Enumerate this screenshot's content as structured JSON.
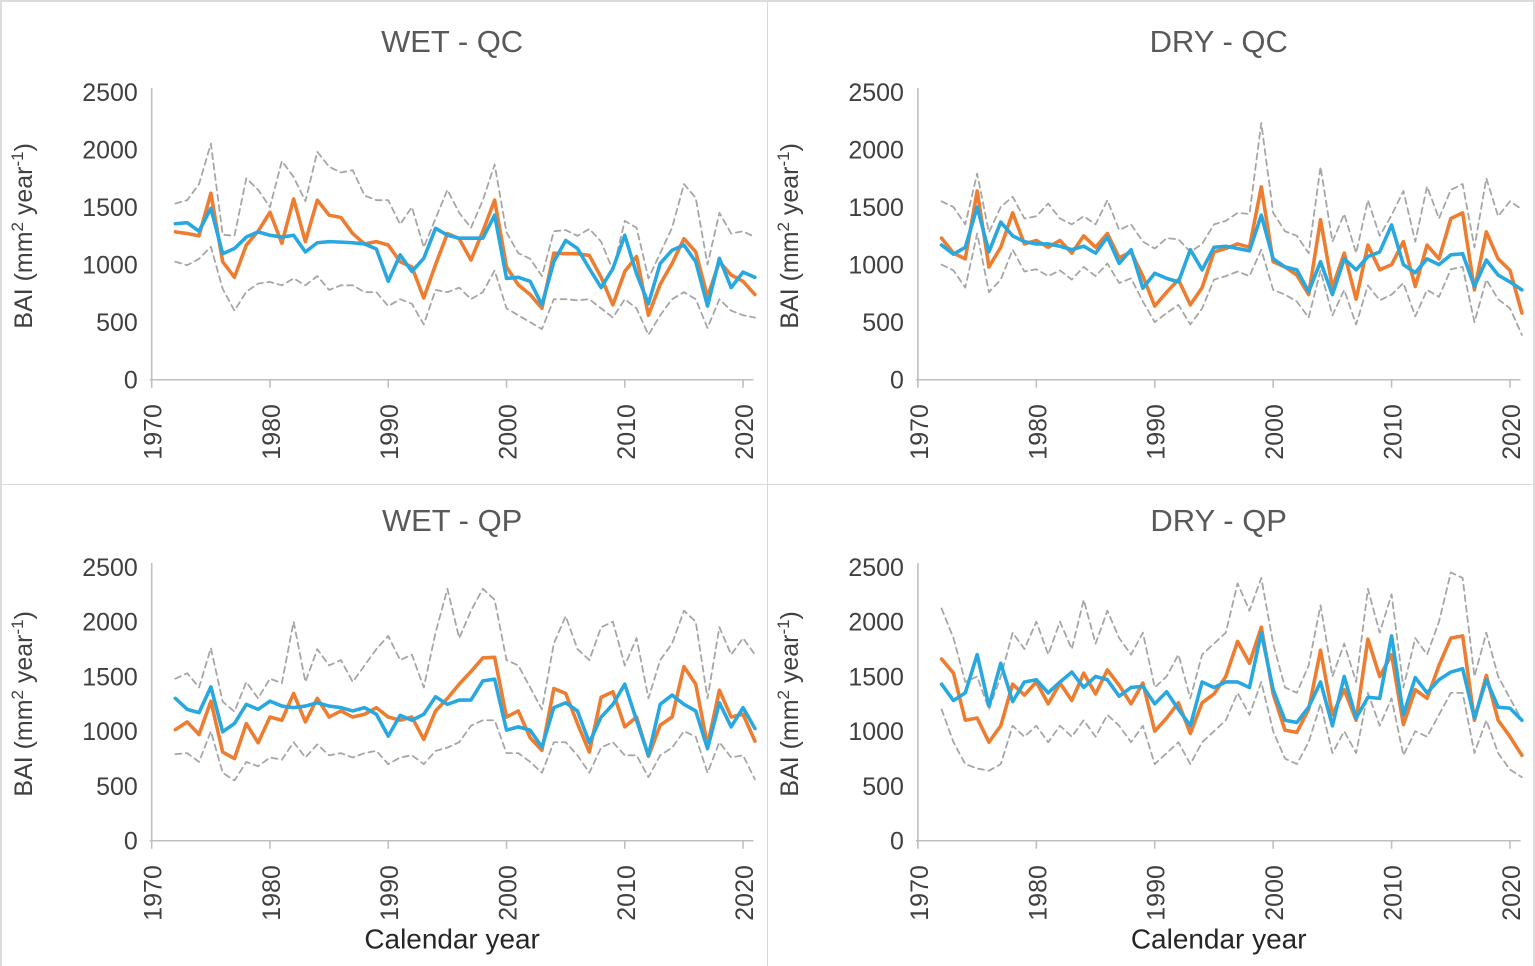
{
  "figure": {
    "background": "#ffffff",
    "border_color": "#d9d9d9"
  },
  "colors": {
    "orange_series": "#ED7D31",
    "blue_series": "#29A8E0",
    "dashed_series": "#A6A6A6",
    "axis_line": "#BFBFBF",
    "tick_text": "#404040",
    "title_text": "#595959",
    "xlabel_text": "#262626"
  },
  "axis": {
    "x_label": "Calendar year",
    "y_label_parts": {
      "pre": "BAI (mm",
      "sup1": "2",
      "mid": " year",
      "sup2": "-1",
      "post": ")"
    },
    "x_ticks": [
      "1970",
      "1980",
      "1990",
      "2000",
      "2010",
      "2020"
    ],
    "y_ticks": [
      "2500",
      "2000",
      "1500",
      "1000",
      "500",
      "0"
    ]
  },
  "chart_data": [
    {
      "type": "line",
      "title": "WET - QC",
      "ylabel": "BAI (mm2 year-1)",
      "xlabel": "Calendar year",
      "show_xlabel": false,
      "ylim": [
        0,
        2500
      ],
      "xlim": [
        1970,
        2022
      ],
      "year_start": 1972,
      "legend": "none",
      "grid": false,
      "series": [
        {
          "name": "upper-dashed",
          "color_key": "dashed_series",
          "dash": true,
          "values": [
            1530,
            1560,
            1700,
            2050,
            1260,
            1250,
            1750,
            1650,
            1500,
            1900,
            1760,
            1550,
            1980,
            1850,
            1800,
            1820,
            1600,
            1560,
            1560,
            1350,
            1500,
            1150,
            1400,
            1650,
            1450,
            1320,
            1560,
            1870,
            1280,
            1100,
            1050,
            900,
            1290,
            1300,
            1250,
            1310,
            1200,
            950,
            1380,
            1320,
            880,
            1100,
            1320,
            1700,
            1580,
            1000,
            1450,
            1270,
            1290,
            1240
          ]
        },
        {
          "name": "lower-dashed",
          "color_key": "dashed_series",
          "dash": true,
          "values": [
            1025,
            995,
            1050,
            1155,
            790,
            600,
            765,
            835,
            850,
            820,
            880,
            820,
            900,
            780,
            820,
            820,
            760,
            760,
            640,
            700,
            660,
            480,
            780,
            760,
            800,
            700,
            760,
            950,
            620,
            560,
            500,
            440,
            700,
            700,
            690,
            700,
            620,
            540,
            700,
            620,
            390,
            560,
            700,
            760,
            700,
            450,
            700,
            600,
            560,
            540
          ]
        },
        {
          "name": "orange-solid",
          "color_key": "orange_series",
          "dash": false,
          "values": [
            1285,
            1270,
            1250,
            1620,
            1025,
            890,
            1170,
            1290,
            1455,
            1185,
            1570,
            1200,
            1560,
            1430,
            1410,
            1270,
            1180,
            1200,
            1170,
            1025,
            980,
            710,
            1000,
            1270,
            1225,
            1040,
            1290,
            1560,
            980,
            825,
            740,
            620,
            1100,
            1095,
            1095,
            1080,
            890,
            650,
            940,
            1070,
            560,
            830,
            1010,
            1225,
            1110,
            720,
            1025,
            910,
            855,
            740
          ]
        },
        {
          "name": "blue-solid",
          "color_key": "blue_series",
          "dash": false,
          "values": [
            1355,
            1365,
            1290,
            1490,
            1095,
            1140,
            1240,
            1285,
            1255,
            1240,
            1255,
            1110,
            1190,
            1200,
            1195,
            1190,
            1180,
            1135,
            855,
            1085,
            940,
            1055,
            1315,
            1255,
            1230,
            1230,
            1230,
            1430,
            880,
            890,
            855,
            650,
            1025,
            1210,
            1140,
            965,
            800,
            965,
            1255,
            920,
            660,
            1010,
            1125,
            1170,
            1025,
            640,
            1055,
            800,
            935,
            890
          ]
        }
      ]
    },
    {
      "type": "line",
      "title": "DRY - QC",
      "ylabel": "BAI (mm2 year-1)",
      "xlabel": "Calendar year",
      "show_xlabel": false,
      "ylim": [
        0,
        2500
      ],
      "xlim": [
        1970,
        2022
      ],
      "year_start": 1972,
      "legend": "none",
      "grid": false,
      "series": [
        {
          "name": "upper-dashed",
          "color_key": "dashed_series",
          "dash": true,
          "values": [
            1550,
            1500,
            1350,
            1790,
            1280,
            1500,
            1590,
            1400,
            1420,
            1530,
            1400,
            1350,
            1420,
            1350,
            1560,
            1300,
            1350,
            1200,
            1140,
            1230,
            1220,
            1110,
            1180,
            1350,
            1380,
            1450,
            1440,
            2230,
            1450,
            1290,
            1250,
            1100,
            1850,
            1200,
            1440,
            1100,
            1560,
            1250,
            1430,
            1640,
            1200,
            1680,
            1400,
            1650,
            1700,
            1150,
            1750,
            1420,
            1550,
            1480
          ]
        },
        {
          "name": "lower-dashed",
          "color_key": "dashed_series",
          "dash": true,
          "values": [
            1000,
            950,
            800,
            1270,
            760,
            870,
            1130,
            940,
            960,
            900,
            950,
            870,
            980,
            900,
            1010,
            840,
            880,
            680,
            500,
            580,
            650,
            480,
            620,
            870,
            900,
            940,
            900,
            1130,
            780,
            740,
            680,
            540,
            950,
            560,
            780,
            480,
            820,
            690,
            740,
            840,
            550,
            780,
            720,
            960,
            980,
            500,
            870,
            700,
            620,
            390
          ]
        },
        {
          "name": "orange-solid",
          "color_key": "orange_series",
          "dash": false,
          "values": [
            1230,
            1100,
            1050,
            1640,
            980,
            1150,
            1450,
            1180,
            1210,
            1150,
            1210,
            1100,
            1250,
            1150,
            1270,
            1060,
            1110,
            900,
            640,
            760,
            870,
            650,
            800,
            1110,
            1140,
            1180,
            1150,
            1675,
            1025,
            980,
            910,
            740,
            1390,
            800,
            1100,
            700,
            1170,
            955,
            1000,
            1200,
            810,
            1170,
            1050,
            1400,
            1450,
            780,
            1285,
            1050,
            950,
            580
          ]
        },
        {
          "name": "blue-solid",
          "color_key": "blue_series",
          "dash": false,
          "values": [
            1170,
            1090,
            1150,
            1500,
            1110,
            1370,
            1250,
            1200,
            1180,
            1180,
            1160,
            1130,
            1160,
            1100,
            1240,
            1010,
            1130,
            795,
            925,
            880,
            850,
            1130,
            955,
            1150,
            1160,
            1140,
            1120,
            1430,
            1050,
            980,
            955,
            765,
            1025,
            740,
            1050,
            955,
            1070,
            1110,
            1345,
            1000,
            930,
            1050,
            1000,
            1085,
            1095,
            810,
            1040,
            910,
            850,
            780
          ]
        }
      ]
    },
    {
      "type": "line",
      "title": "WET - QP",
      "ylabel": "BAI (mm2 year-1)",
      "xlabel": "Calendar year",
      "show_xlabel": true,
      "ylim": [
        0,
        2500
      ],
      "xlim": [
        1970,
        2022
      ],
      "year_start": 1972,
      "legend": "none",
      "grid": false,
      "series": [
        {
          "name": "upper-dashed",
          "color_key": "dashed_series",
          "dash": true,
          "values": [
            1480,
            1530,
            1400,
            1760,
            1270,
            1180,
            1450,
            1300,
            1480,
            1440,
            2000,
            1450,
            1750,
            1600,
            1650,
            1450,
            1600,
            1750,
            1870,
            1650,
            1700,
            1400,
            1900,
            2300,
            1850,
            2100,
            2300,
            2200,
            1650,
            1600,
            1400,
            1200,
            1800,
            2050,
            1750,
            1650,
            1950,
            2000,
            1600,
            1850,
            1300,
            1650,
            1800,
            2100,
            2000,
            1300,
            1950,
            1700,
            1850,
            1700
          ]
        },
        {
          "name": "lower-dashed",
          "color_key": "dashed_series",
          "dash": true,
          "values": [
            790,
            800,
            720,
            1000,
            620,
            550,
            720,
            680,
            760,
            740,
            900,
            760,
            880,
            780,
            800,
            760,
            800,
            820,
            700,
            760,
            780,
            700,
            820,
            850,
            900,
            1050,
            1100,
            1100,
            800,
            800,
            720,
            620,
            900,
            900,
            780,
            620,
            850,
            900,
            780,
            780,
            580,
            780,
            850,
            1000,
            950,
            620,
            900,
            760,
            780,
            560
          ]
        },
        {
          "name": "orange-solid",
          "color_key": "orange_series",
          "dash": false,
          "values": [
            1015,
            1085,
            970,
            1275,
            810,
            750,
            1070,
            895,
            1130,
            1100,
            1345,
            1085,
            1300,
            1130,
            1185,
            1130,
            1155,
            1215,
            1130,
            1100,
            1130,
            925,
            1185,
            1300,
            1430,
            1545,
            1670,
            1675,
            1130,
            1185,
            940,
            825,
            1390,
            1345,
            1070,
            810,
            1310,
            1360,
            1040,
            1130,
            770,
            1055,
            1130,
            1590,
            1430,
            870,
            1375,
            1130,
            1155,
            910
          ]
        },
        {
          "name": "blue-solid",
          "color_key": "blue_series",
          "dash": false,
          "values": [
            1300,
            1200,
            1170,
            1405,
            995,
            1070,
            1245,
            1200,
            1275,
            1230,
            1215,
            1230,
            1260,
            1230,
            1215,
            1185,
            1215,
            1155,
            955,
            1145,
            1100,
            1155,
            1315,
            1245,
            1285,
            1285,
            1460,
            1475,
            1010,
            1040,
            1010,
            855,
            1215,
            1260,
            1185,
            895,
            1130,
            1245,
            1430,
            1100,
            780,
            1245,
            1330,
            1245,
            1185,
            840,
            1260,
            1040,
            1215,
            1025
          ]
        }
      ]
    },
    {
      "type": "line",
      "title": "DRY - QP",
      "ylabel": "BAI (mm2 year-1)",
      "xlabel": "Calendar year",
      "show_xlabel": true,
      "ylim": [
        0,
        2500
      ],
      "xlim": [
        1970,
        2022
      ],
      "year_start": 1972,
      "legend": "none",
      "grid": false,
      "series": [
        {
          "name": "upper-dashed",
          "color_key": "dashed_series",
          "dash": true,
          "values": [
            2120,
            1850,
            1450,
            1500,
            1200,
            1500,
            1900,
            1750,
            2000,
            1700,
            2000,
            1750,
            2200,
            1800,
            2100,
            1850,
            1700,
            1900,
            1400,
            1500,
            1700,
            1300,
            1700,
            1800,
            1900,
            2350,
            2100,
            2400,
            1800,
            1400,
            1350,
            1600,
            2150,
            1500,
            1800,
            1450,
            2300,
            1900,
            2250,
            1400,
            1850,
            1700,
            2000,
            2450,
            2400,
            1500,
            1900,
            1500,
            1300,
            1100
          ]
        },
        {
          "name": "lower-dashed",
          "color_key": "dashed_series",
          "dash": true,
          "values": [
            1200,
            900,
            700,
            660,
            640,
            700,
            1050,
            950,
            1050,
            900,
            1050,
            950,
            1100,
            950,
            1150,
            1050,
            900,
            1050,
            700,
            800,
            900,
            700,
            900,
            1000,
            1100,
            1350,
            1150,
            1450,
            1000,
            750,
            700,
            900,
            1250,
            800,
            1000,
            800,
            1350,
            1050,
            1300,
            780,
            1000,
            950,
            1150,
            1350,
            1350,
            800,
            1100,
            800,
            650,
            580
          ]
        },
        {
          "name": "orange-solid",
          "color_key": "orange_series",
          "dash": false,
          "values": [
            1660,
            1530,
            1100,
            1120,
            900,
            1050,
            1430,
            1330,
            1450,
            1250,
            1440,
            1280,
            1530,
            1340,
            1560,
            1420,
            1250,
            1440,
            1000,
            1120,
            1260,
            980,
            1260,
            1340,
            1500,
            1820,
            1620,
            1950,
            1340,
            1010,
            990,
            1200,
            1740,
            1150,
            1380,
            1100,
            1840,
            1500,
            1700,
            1060,
            1380,
            1300,
            1600,
            1850,
            1870,
            1100,
            1510,
            1100,
            950,
            780
          ]
        },
        {
          "name": "blue-solid",
          "color_key": "blue_series",
          "dash": false,
          "values": [
            1430,
            1280,
            1350,
            1700,
            1230,
            1620,
            1270,
            1450,
            1470,
            1350,
            1450,
            1540,
            1400,
            1500,
            1470,
            1320,
            1400,
            1410,
            1250,
            1360,
            1200,
            1050,
            1450,
            1400,
            1450,
            1450,
            1400,
            1900,
            1380,
            1100,
            1080,
            1220,
            1450,
            1050,
            1500,
            1120,
            1310,
            1300,
            1870,
            1150,
            1490,
            1350,
            1470,
            1540,
            1570,
            1120,
            1470,
            1220,
            1210,
            1100
          ]
        }
      ]
    }
  ]
}
